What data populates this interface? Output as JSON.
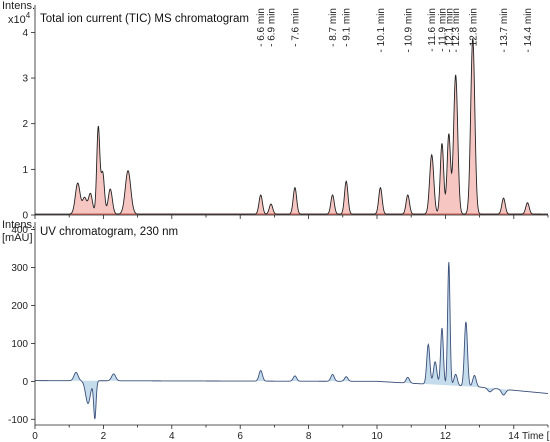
{
  "chart_data": [
    {
      "type": "line",
      "title": "Total ion current (TIC) MS chromatogram",
      "ylabel": "Intens.",
      "yunit": "x10",
      "yunit_exp": "4",
      "xlim": [
        0,
        15
      ],
      "ylim": [
        0,
        4.6
      ],
      "yticks": [
        0,
        1,
        2,
        3,
        4
      ],
      "colors": {
        "line": "#222222",
        "fill": "#f6c6c2",
        "baseline": "#c0392b"
      },
      "peaks": [
        {
          "t": 1.25,
          "h": 0.68,
          "w": 0.07
        },
        {
          "t": 1.45,
          "h": 0.35,
          "w": 0.06
        },
        {
          "t": 1.62,
          "h": 0.45,
          "w": 0.06
        },
        {
          "t": 1.85,
          "h": 1.9,
          "w": 0.045
        },
        {
          "t": 1.98,
          "h": 0.9,
          "w": 0.05
        },
        {
          "t": 2.2,
          "h": 0.55,
          "w": 0.06
        },
        {
          "t": 2.72,
          "h": 0.95,
          "w": 0.08
        },
        {
          "t": 6.6,
          "h": 0.42,
          "w": 0.05
        },
        {
          "t": 6.9,
          "h": 0.22,
          "w": 0.05
        },
        {
          "t": 7.6,
          "h": 0.58,
          "w": 0.05
        },
        {
          "t": 8.7,
          "h": 0.42,
          "w": 0.05
        },
        {
          "t": 9.1,
          "h": 0.72,
          "w": 0.05
        },
        {
          "t": 10.1,
          "h": 0.58,
          "w": 0.05
        },
        {
          "t": 10.9,
          "h": 0.42,
          "w": 0.05
        },
        {
          "t": 11.6,
          "h": 1.3,
          "w": 0.06
        },
        {
          "t": 11.9,
          "h": 1.55,
          "w": 0.05
        },
        {
          "t": 12.1,
          "h": 1.75,
          "w": 0.05
        },
        {
          "t": 12.3,
          "h": 3.05,
          "w": 0.06
        },
        {
          "t": 12.8,
          "h": 3.85,
          "w": 0.06
        },
        {
          "t": 13.7,
          "h": 0.35,
          "w": 0.05
        },
        {
          "t": 14.4,
          "h": 0.25,
          "w": 0.05
        }
      ]
    },
    {
      "type": "line",
      "title": "UV chromatogram, 230 nm",
      "ylabel": "Intens.",
      "yunit": "[mAU]",
      "xlabel": "Time [min]",
      "xlim": [
        0,
        15
      ],
      "ylim": [
        -115,
        420
      ],
      "yticks": [
        -100,
        0,
        100,
        200,
        300,
        400
      ],
      "xticks": [
        0,
        2,
        4,
        6,
        8,
        10,
        12,
        14
      ],
      "colors": {
        "line": "#3a4f7a",
        "fill": "#c5dcec"
      },
      "peaks": [
        {
          "t": 1.2,
          "h": 22,
          "w": 0.06
        },
        {
          "t": 1.55,
          "h": -60,
          "w": 0.07
        },
        {
          "t": 1.75,
          "h": -100,
          "w": 0.035
        },
        {
          "t": 2.3,
          "h": 18,
          "w": 0.06
        },
        {
          "t": 6.6,
          "h": 28,
          "w": 0.05
        },
        {
          "t": 7.6,
          "h": 14,
          "w": 0.05
        },
        {
          "t": 8.7,
          "h": 18,
          "w": 0.05
        },
        {
          "t": 9.1,
          "h": 12,
          "w": 0.05
        },
        {
          "t": 10.9,
          "h": 15,
          "w": 0.05
        },
        {
          "t": 11.5,
          "h": 105,
          "w": 0.045
        },
        {
          "t": 11.7,
          "h": 60,
          "w": 0.05
        },
        {
          "t": 11.9,
          "h": 150,
          "w": 0.04
        },
        {
          "t": 12.1,
          "h": 325,
          "w": 0.035
        },
        {
          "t": 12.3,
          "h": 30,
          "w": 0.05
        },
        {
          "t": 12.6,
          "h": 170,
          "w": 0.045
        },
        {
          "t": 12.85,
          "h": 30,
          "w": 0.05
        },
        {
          "t": 13.3,
          "h": -10,
          "w": 0.06
        },
        {
          "t": 13.7,
          "h": -15,
          "w": 0.06
        }
      ],
      "drift": [
        {
          "t": 0,
          "v": 2
        },
        {
          "t": 10,
          "v": 0
        },
        {
          "t": 13,
          "v": -15
        },
        {
          "t": 15,
          "v": -32
        }
      ]
    }
  ],
  "annotations": [
    {
      "t": 6.6,
      "label": "6.6 min"
    },
    {
      "t": 6.9,
      "label": "6.9 min"
    },
    {
      "t": 7.6,
      "label": "7.6 min"
    },
    {
      "t": 8.7,
      "label": "8.7 min"
    },
    {
      "t": 9.1,
      "label": "9.1 min"
    },
    {
      "t": 10.1,
      "label": "10.1 min"
    },
    {
      "t": 10.9,
      "label": "10.9 min"
    },
    {
      "t": 11.6,
      "label": "11.6 min"
    },
    {
      "t": 11.9,
      "label": "11.9 min"
    },
    {
      "t": 12.1,
      "label": "12.1 min"
    },
    {
      "t": 12.3,
      "label": "12.3 min"
    },
    {
      "t": 12.8,
      "label": "12.8 min"
    },
    {
      "t": 13.7,
      "label": "13.7 min"
    },
    {
      "t": 14.4,
      "label": "14.4 min"
    }
  ]
}
